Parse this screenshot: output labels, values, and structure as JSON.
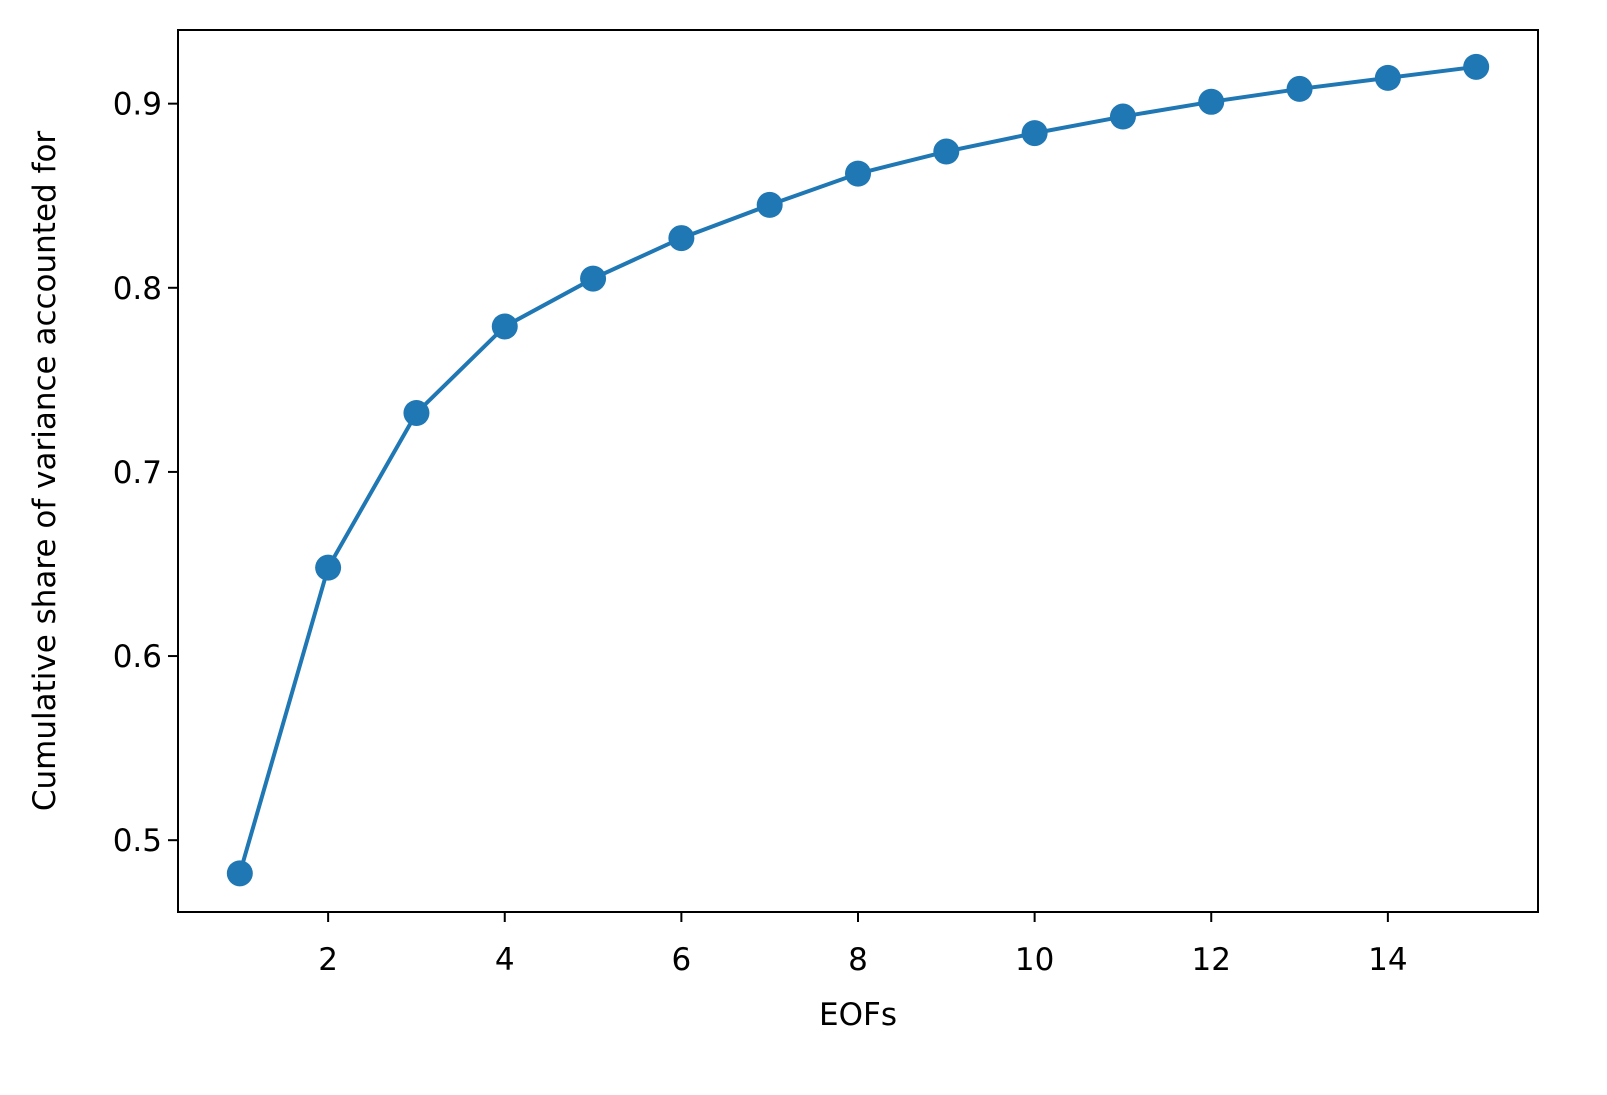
{
  "chart_data": {
    "type": "line",
    "xlabel": "EOFs",
    "ylabel": "Cumulative share of variance accounted for",
    "x": [
      1,
      2,
      3,
      4,
      5,
      6,
      7,
      8,
      9,
      10,
      11,
      12,
      13,
      14,
      15
    ],
    "series": [
      {
        "color": "#1f77b4",
        "marker": "o",
        "values": [
          0.482,
          0.648,
          0.732,
          0.779,
          0.805,
          0.827,
          0.845,
          0.862,
          0.874,
          0.884,
          0.893,
          0.901,
          0.908,
          0.914,
          0.92
        ]
      }
    ],
    "xlim": [
      0.3,
      15.7
    ],
    "ylim": [
      0.461,
      0.94
    ],
    "xticks": [
      2,
      4,
      6,
      8,
      10,
      12,
      14
    ],
    "yticks": [
      0.5,
      0.6,
      0.7,
      0.8,
      0.9
    ],
    "grid": false
  }
}
